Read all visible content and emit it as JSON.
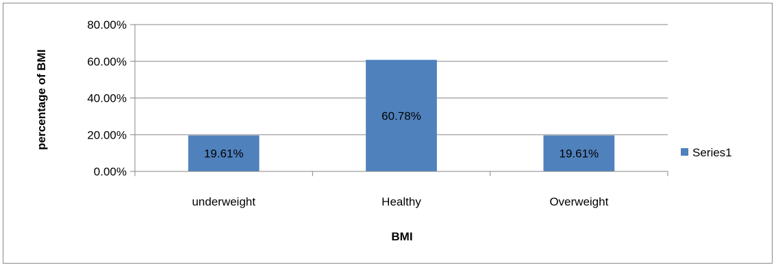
{
  "chart_data": {
    "type": "bar",
    "categories": [
      "underweight",
      "Healthy",
      "Overweight"
    ],
    "series": [
      {
        "name": "Series1",
        "values": [
          0.1961,
          0.6078,
          0.1961
        ],
        "color": "#4F81BD"
      }
    ],
    "data_labels": [
      "19.61%",
      "60.78%",
      "19.61%"
    ],
    "xlabel": "BMI",
    "ylabel": "percentage of BMI",
    "ylim": [
      0,
      0.8
    ],
    "y_ticks": [
      0,
      0.2,
      0.4,
      0.6,
      0.8
    ],
    "y_tick_labels": [
      "0.00%",
      "20.00%",
      "40.00%",
      "60.00%",
      "80.00%"
    ],
    "grid": true,
    "legend_position": "right",
    "legend_label": "Series1"
  }
}
